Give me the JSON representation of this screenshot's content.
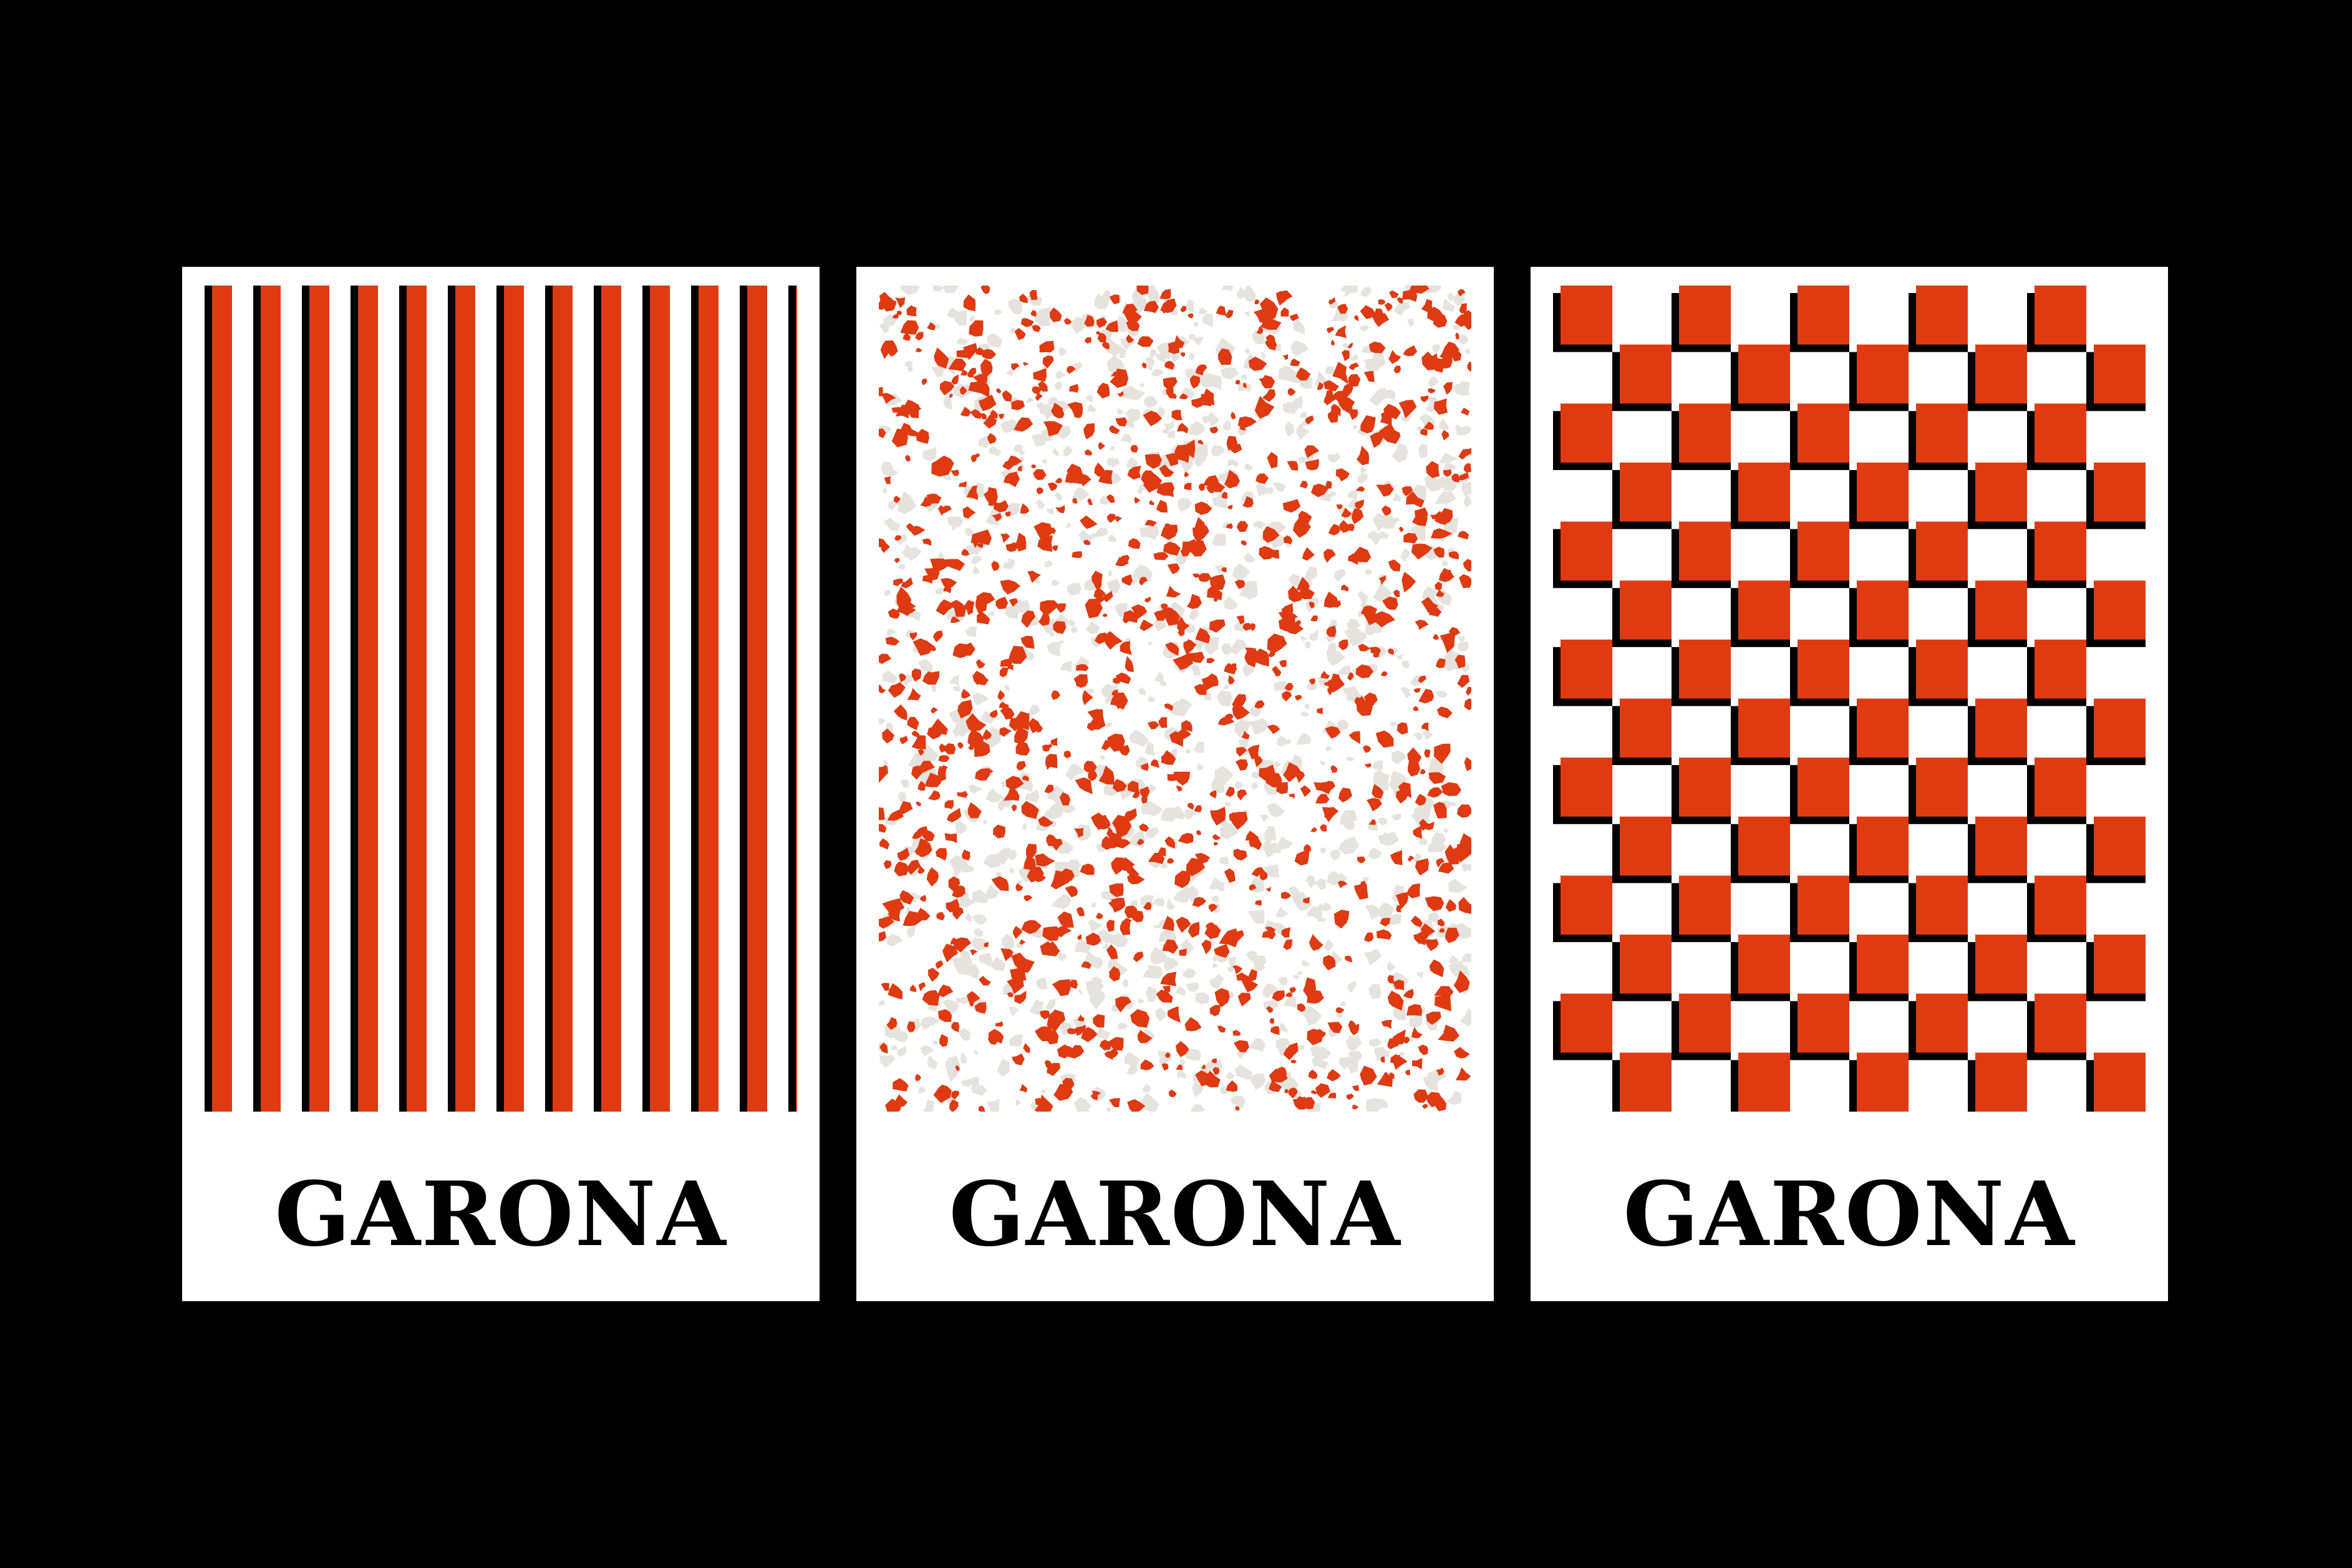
{
  "brand": "GARONA",
  "colors": {
    "background": "#000000",
    "card": "#ffffff",
    "accent": "#df3a12",
    "shadow": "#000000",
    "speckle_light": "#e6e2de"
  },
  "cards": [
    {
      "pattern": "vertical-stripes",
      "wordmark": "GARONA"
    },
    {
      "pattern": "terrazzo-speckle",
      "wordmark": "GARONA"
    },
    {
      "pattern": "checkerboard",
      "wordmark": "GARONA"
    }
  ]
}
